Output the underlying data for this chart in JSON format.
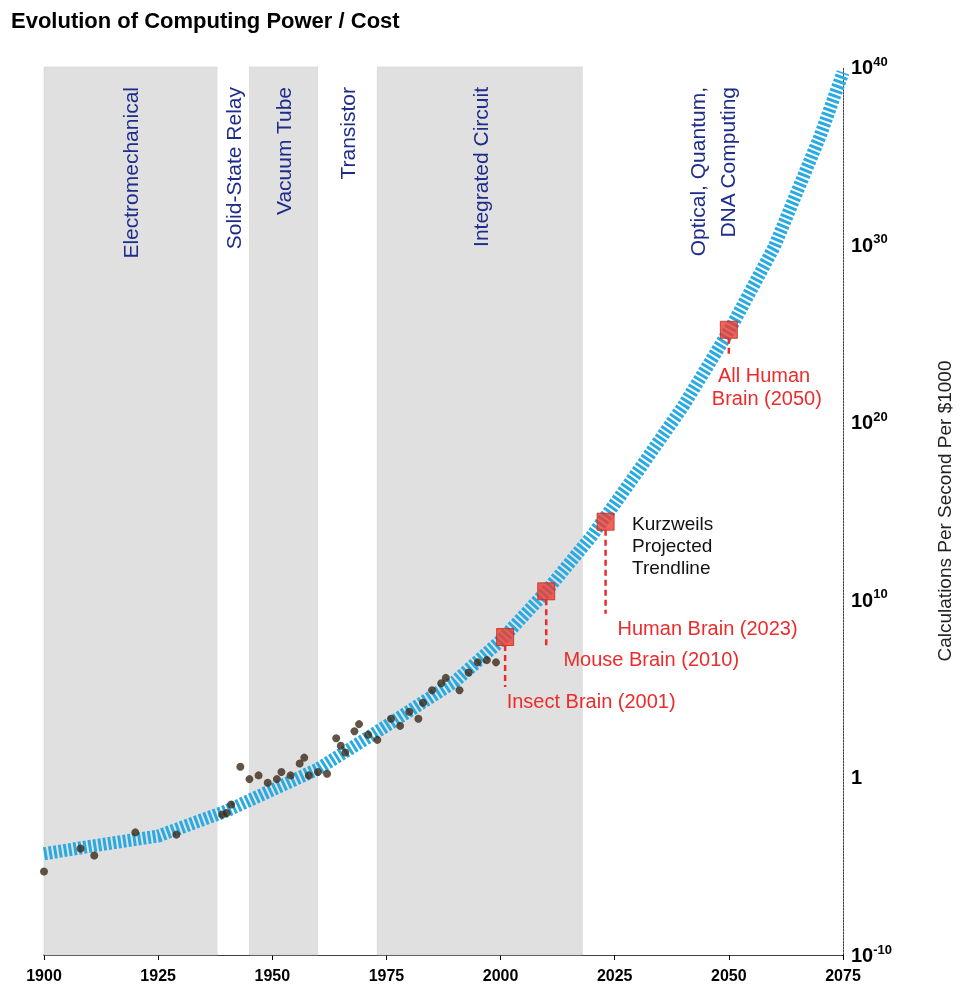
{
  "chart_data": {
    "type": "scatter",
    "title": "Evolution of Computing Power / Cost",
    "ylabel": "Calculations Per Second Per $1000",
    "log": "y",
    "grid": false,
    "xlim": [
      1900,
      2075
    ],
    "xticks": [
      1900,
      1925,
      1950,
      1975,
      2000,
      2025,
      2050,
      2075
    ],
    "ylim": [
      1e-10,
      1e+40
    ],
    "yticks": [
      {
        "value": 1e-10,
        "label": "10$^{-10}$"
      },
      1,
      {
        "value": 10000000000.0,
        "label": "10$^{10}$"
      },
      {
        "value": 1e+20,
        "label": "10$^{20}$"
      },
      {
        "value": 1e+30,
        "label": "10$^{30}$"
      },
      {
        "value": 1e+40,
        "label": "10$^{40}$"
      }
    ],
    "bands": [
      {
        "axis": "x",
        "from": 1900,
        "to": 1938,
        "label": "Electromechanical",
        "color": "#e0e0e0"
      },
      {
        "axis": "x",
        "from": 1938,
        "to": 1945,
        "label": "Solid-State Relay",
        "color": "#ffffff"
      },
      {
        "axis": "x",
        "from": 1945,
        "to": 1960,
        "label": "Vacuum Tube",
        "color": "#e0e0e0"
      },
      {
        "axis": "x",
        "from": 1960,
        "to": 1973,
        "label": "Transistor",
        "color": "#ffffff"
      },
      {
        "axis": "x",
        "from": 1973,
        "to": 2018,
        "label": "Integrated Circuit",
        "color": "#e0e0e0"
      },
      {
        "axis": "x",
        "from": 2018,
        "to": 2075,
        "label": "Optical, Quantum, DNA Computing",
        "color": "#ffffff"
      }
    ],
    "series": [
      {
        "type": "line",
        "color": "#29abe2",
        "line_style": "dashed",
        "marker": "none",
        "x": [
          1900,
          1910,
          1925,
          1940,
          1950,
          1960,
          1975,
          1990,
          2000,
          2010,
          2020,
          2030,
          2040,
          2050,
          2060,
          2070,
          2075
        ],
        "values": [
          5e-05,
          0.00013,
          0.0005,
          0.013,
          0.2,
          3,
          800,
          250000.0,
          50000000.0,
          30000000000.0,
          40000000000000.0,
          1.6e+17,
          8e+20,
          1.3e+25,
          8e+29,
          1.3e+36,
          5e+39
        ]
      },
      {
        "color": "#3b2a1a",
        "marker": "circle",
        "x": [
          1900,
          1908,
          1911,
          1920,
          1929,
          1939,
          1940,
          1941,
          1943,
          1945,
          1947,
          1949,
          1951,
          1952,
          1954,
          1956,
          1957,
          1958,
          1960,
          1962,
          1964,
          1965,
          1966,
          1968,
          1969,
          1971,
          1973,
          1976,
          1978,
          1980,
          1982,
          1983,
          1985,
          1987,
          1988,
          1991,
          1993,
          1995,
          1997,
          1999
        ],
        "values": [
          5e-06,
          0.0001,
          4e-05,
          0.0008,
          0.0006,
          0.008,
          0.01,
          0.03,
          4,
          0.8,
          1.3,
          0.5,
          0.8,
          2,
          1.3,
          6,
          13,
          1.3,
          2,
          1.6,
          160,
          60,
          25,
          400,
          1000,
          250,
          130,
          2000,
          800,
          5000,
          2000,
          16000.0,
          80000.0,
          200000.0,
          400000.0,
          80000.0,
          800000.0,
          3000000.0,
          4000000.0,
          3000000.0
        ]
      },
      {
        "color": "#ee3b2f",
        "marker": "square",
        "x": [
          2001,
          2010,
          2023,
          2050
        ],
        "values": [
          80000000.0,
          30000000000.0,
          250000000000000.0,
          1.6e+25
        ]
      }
    ],
    "annotations": [
      {
        "text": "Insect Brain (2001)",
        "x": 2001,
        "y": 80000000.0
      },
      {
        "text": "Mouse Brain (2010)",
        "x": 2010,
        "y": 30000000000.0
      },
      {
        "text": "Human Brain (2023)",
        "x": 2023,
        "y": 250000000000000.0
      },
      {
        "text": "All Human Brain (2050)",
        "x": 2050,
        "y": 1.6e+25
      },
      "Kurzweils Projected Trendline"
    ]
  }
}
